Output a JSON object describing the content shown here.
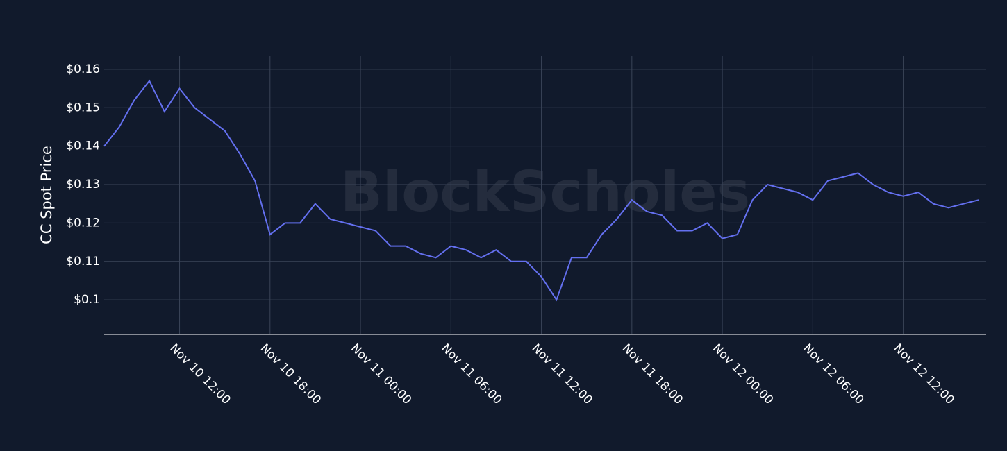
{
  "chart_data": {
    "type": "line",
    "watermark": "BlockScholes",
    "y_label": "CC Spot Price",
    "color": "#6470f0",
    "grid": true,
    "xlim": [
      "Nov 10 07:00",
      "Nov 12 17:30"
    ],
    "xticks": [
      "Nov 10 12:00",
      "Nov 10 18:00",
      "Nov 11 00:00",
      "Nov 11 06:00",
      "Nov 11 12:00",
      "Nov 11 18:00",
      "Nov 12 00:00",
      "Nov 12 06:00",
      "Nov 12 12:00"
    ],
    "ylim": [
      0.091,
      0.1636
    ],
    "yticks": [
      {
        "value": 0.1,
        "label": "$0.1"
      },
      {
        "value": 0.11,
        "label": "$0.11"
      },
      {
        "value": 0.12,
        "label": "$0.12"
      },
      {
        "value": 0.13,
        "label": "$0.13"
      },
      {
        "value": 0.14,
        "label": "$0.14"
      },
      {
        "value": 0.15,
        "label": "$0.15"
      },
      {
        "value": 0.16,
        "label": "$0.16"
      }
    ],
    "x": [
      "Nov 10 07:00",
      "Nov 10 08:00",
      "Nov 10 09:00",
      "Nov 10 10:00",
      "Nov 10 11:00",
      "Nov 10 12:00",
      "Nov 10 13:00",
      "Nov 10 14:00",
      "Nov 10 15:00",
      "Nov 10 16:00",
      "Nov 10 17:00",
      "Nov 10 18:00",
      "Nov 10 19:00",
      "Nov 10 20:00",
      "Nov 10 21:00",
      "Nov 10 22:00",
      "Nov 10 23:00",
      "Nov 11 00:00",
      "Nov 11 01:00",
      "Nov 11 02:00",
      "Nov 11 03:00",
      "Nov 11 04:00",
      "Nov 11 05:00",
      "Nov 11 06:00",
      "Nov 11 07:00",
      "Nov 11 08:00",
      "Nov 11 09:00",
      "Nov 11 10:00",
      "Nov 11 11:00",
      "Nov 11 12:00",
      "Nov 11 13:00",
      "Nov 11 14:00",
      "Nov 11 15:00",
      "Nov 11 16:00",
      "Nov 11 17:00",
      "Nov 11 18:00",
      "Nov 11 19:00",
      "Nov 11 20:00",
      "Nov 11 21:00",
      "Nov 11 22:00",
      "Nov 11 23:00",
      "Nov 12 00:00",
      "Nov 12 01:00",
      "Nov 12 02:00",
      "Nov 12 03:00",
      "Nov 12 04:00",
      "Nov 12 05:00",
      "Nov 12 06:00",
      "Nov 12 07:00",
      "Nov 12 08:00",
      "Nov 12 09:00",
      "Nov 12 10:00",
      "Nov 12 11:00",
      "Nov 12 12:00",
      "Nov 12 13:00",
      "Nov 12 14:00",
      "Nov 12 15:00",
      "Nov 12 16:00",
      "Nov 12 17:00"
    ],
    "values": [
      0.14,
      0.145,
      0.152,
      0.157,
      0.149,
      0.155,
      0.15,
      0.147,
      0.144,
      0.138,
      0.131,
      0.117,
      0.12,
      0.12,
      0.125,
      0.121,
      0.12,
      0.119,
      0.118,
      0.114,
      0.114,
      0.112,
      0.111,
      0.114,
      0.113,
      0.111,
      0.113,
      0.11,
      0.11,
      0.106,
      0.1,
      0.111,
      0.111,
      0.117,
      0.121,
      0.126,
      0.123,
      0.122,
      0.118,
      0.118,
      0.12,
      0.116,
      0.117,
      0.126,
      0.13,
      0.129,
      0.128,
      0.126,
      0.131,
      0.132,
      0.133,
      0.13,
      0.128,
      0.127,
      0.128,
      0.125,
      0.124,
      0.125,
      0.126
    ]
  }
}
